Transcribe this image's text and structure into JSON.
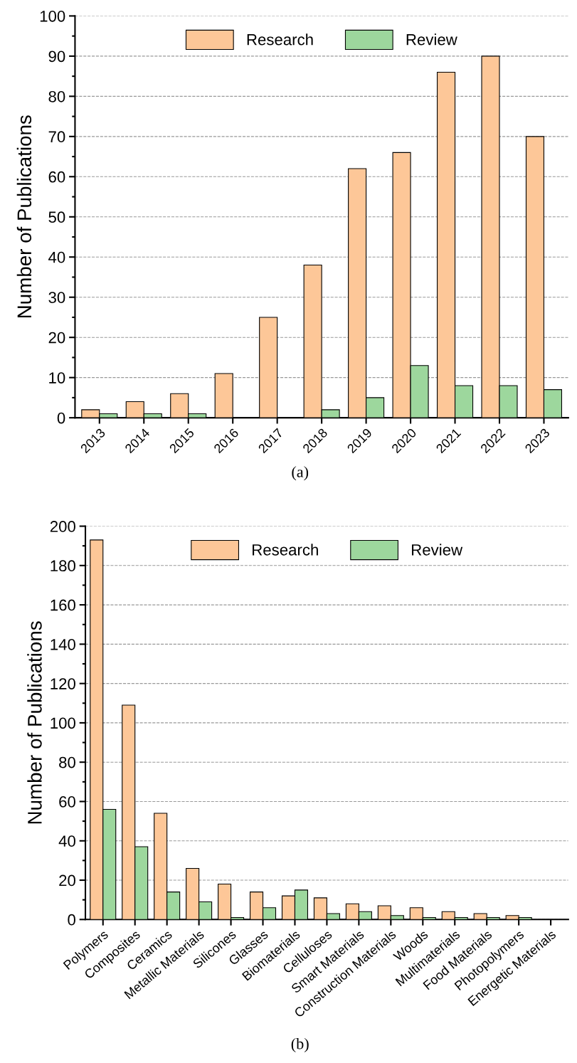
{
  "chart_data": [
    {
      "type": "bar",
      "ylabel": "Number of Publications",
      "categories": [
        "2013",
        "2014",
        "2015",
        "2016",
        "2017",
        "2018",
        "2019",
        "2020",
        "2021",
        "2022",
        "2023"
      ],
      "series": [
        {
          "name": "Research",
          "color": "#fdc798",
          "values": [
            2,
            4,
            6,
            11,
            25,
            38,
            62,
            66,
            86,
            90,
            70
          ]
        },
        {
          "name": "Review",
          "color": "#9dd79d",
          "values": [
            1,
            1,
            1,
            0,
            0,
            2,
            5,
            13,
            8,
            8,
            7
          ]
        }
      ],
      "ylim": [
        0,
        100
      ],
      "yticks": [
        0,
        10,
        20,
        30,
        40,
        50,
        60,
        70,
        80,
        90,
        100
      ],
      "grid": "y",
      "legend": "top",
      "annotations": [
        "(a)"
      ]
    },
    {
      "type": "bar",
      "ylabel": "Number of Publications",
      "categories": [
        "Polymers",
        "Composites",
        "Ceramics",
        "Metallic Materials",
        "Silicones",
        "Glasses",
        "Biomaterials",
        "Celluloses",
        "Smart Materials",
        "Construction Materials",
        "Woods",
        "Multimaterials",
        "Food Materials",
        "Photopolymers",
        "Energetic Materials"
      ],
      "series": [
        {
          "name": "Research",
          "color": "#fdc798",
          "values": [
            193,
            109,
            54,
            26,
            18,
            14,
            12,
            11,
            8,
            7,
            6,
            4,
            3,
            2,
            0
          ]
        },
        {
          "name": "Review",
          "color": "#9dd79d",
          "values": [
            56,
            37,
            14,
            9,
            1,
            6,
            15,
            3,
            4,
            2,
            1,
            1,
            1,
            1,
            0
          ]
        }
      ],
      "ylim": [
        0,
        200
      ],
      "yticks": [
        0,
        20,
        40,
        60,
        80,
        100,
        120,
        140,
        160,
        180,
        200
      ],
      "grid": "y",
      "legend": "top",
      "annotations": [
        "(b)"
      ]
    }
  ]
}
